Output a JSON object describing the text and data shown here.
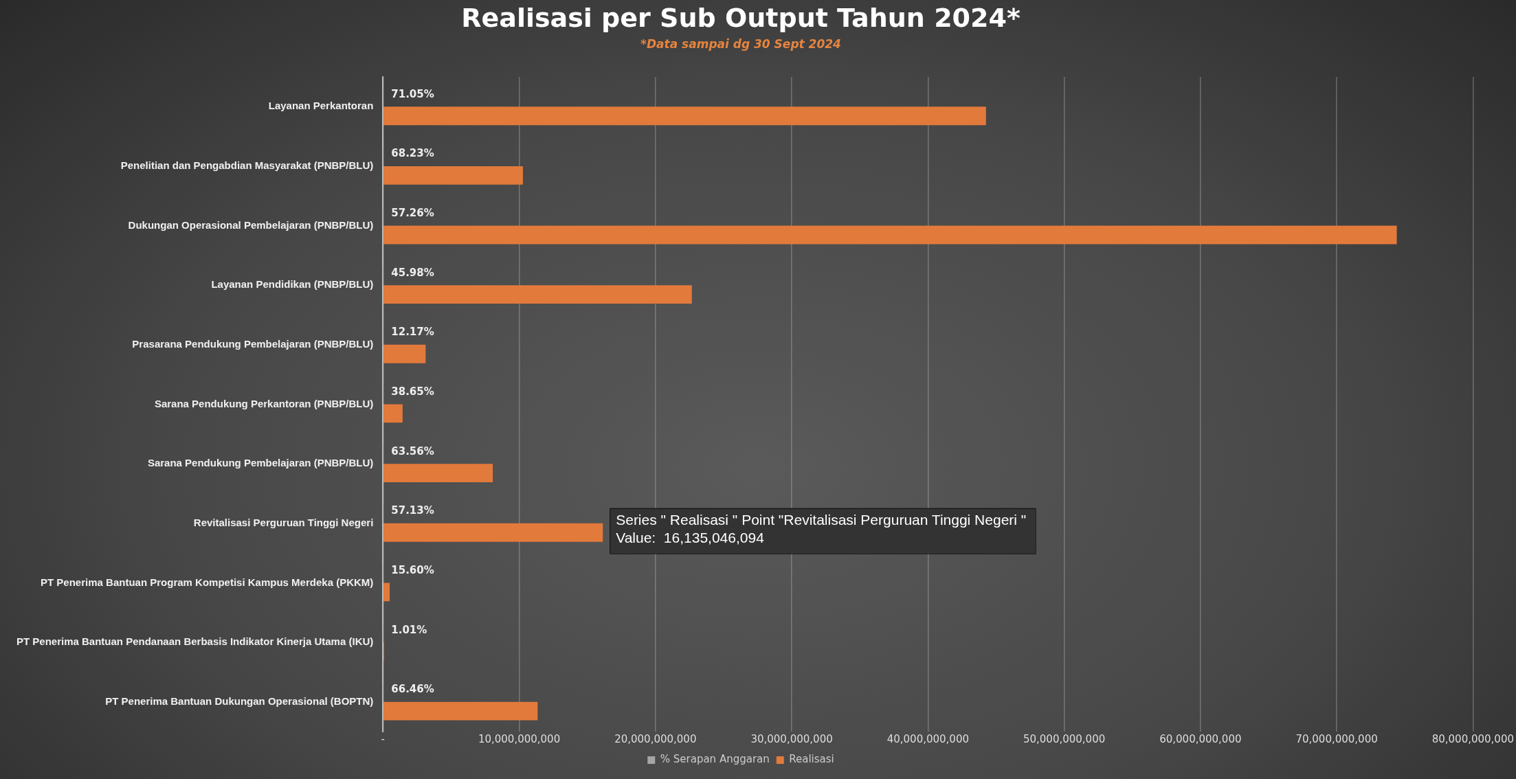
{
  "chart_data": {
    "type": "bar",
    "orientation": "horizontal",
    "title": "Realisasi per Sub Output Tahun 2024*",
    "subtitle": "*Data sampai dg 30 Sept 2024",
    "categories": [
      "Layanan Perkantoran",
      "Penelitian dan Pengabdian Masyarakat (PNBP/BLU)",
      "Dukungan Operasional Pembelajaran (PNBP/BLU)",
      "Layanan Pendidikan (PNBP/BLU)",
      "Prasarana Pendukung Pembelajaran (PNBP/BLU)",
      "Sarana Pendukung Perkantoran (PNBP/BLU)",
      "Sarana Pendukung Pembelajaran (PNBP/BLU)",
      "Revitalisasi Perguruan Tinggi Negeri",
      "PT Penerima Bantuan Program Kompetisi Kampus Merdeka (PKKM)",
      "PT Penerima Bantuan Pendanaan Berbasis Indikator Kinerja Utama (IKU)",
      "PT Penerima Bantuan Dukungan Operasional (BOPTN)"
    ],
    "series": [
      {
        "name": "% Serapan Anggaran",
        "color": "#a5a5a5",
        "values": [
          0.7105,
          0.6823,
          0.5726,
          0.4598,
          0.1217,
          0.3865,
          0.6356,
          0.5713,
          0.156,
          0.0101,
          0.6646
        ],
        "value_labels": [
          "71.05%",
          "68.23%",
          "57.26%",
          "45.98%",
          "12.17%",
          "38.65%",
          "63.56%",
          "57.13%",
          "15.60%",
          "1.01%",
          "66.46%"
        ]
      },
      {
        "name": "Realisasi",
        "color": "#e27a3c",
        "values": [
          44260000000,
          10270000000,
          74410000000,
          22670000000,
          3130000000,
          1440000000,
          8060000000,
          16135046094,
          490000000,
          70000000,
          11350000000
        ]
      }
    ],
    "xlim": [
      0,
      80000000000
    ],
    "xticks": [
      {
        "value": 0,
        "label": "-"
      },
      {
        "value": 10000000000,
        "label": "10,000,000,000"
      },
      {
        "value": 20000000000,
        "label": "20,000,000,000"
      },
      {
        "value": 30000000000,
        "label": "30,000,000,000"
      },
      {
        "value": 40000000000,
        "label": "40,000,000,000"
      },
      {
        "value": 50000000000,
        "label": "50,000,000,000"
      },
      {
        "value": 60000000000,
        "label": "60,000,000,000"
      },
      {
        "value": 70000000000,
        "label": "70,000,000,000"
      },
      {
        "value": 80000000000,
        "label": "80,000,000,000"
      }
    ],
    "grid": "x",
    "legend": "bottom",
    "annotations": [
      {
        "text": "Series \" Realisasi \" Point \"Revitalisasi Perguruan Tinggi Negeri \"\nValue:  16,135,046,094",
        "x": 16135046094,
        "y": "Revitalisasi Perguruan Tinggi Negeri"
      }
    ]
  }
}
